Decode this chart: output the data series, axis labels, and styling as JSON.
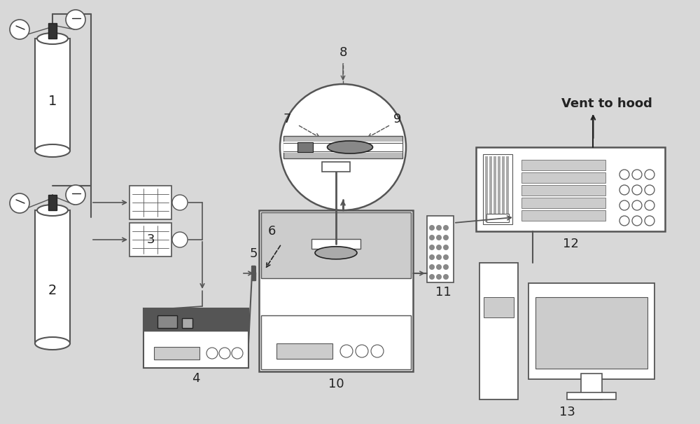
{
  "bg_color": "#d8d8d8",
  "line_color": "#555555",
  "dark_color": "#222222",
  "vent_text": "Vent to hood"
}
